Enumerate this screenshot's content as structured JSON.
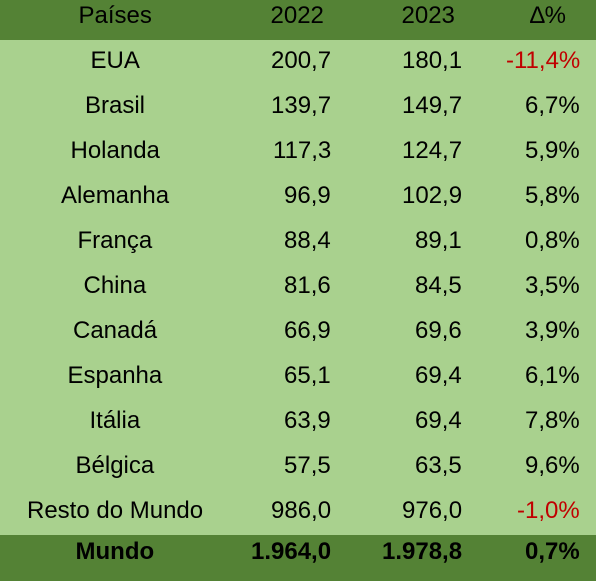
{
  "table": {
    "header": [
      "Países",
      "2022",
      "2023",
      "∆%"
    ],
    "rows": [
      [
        "EUA",
        "200,7",
        "180,1",
        "-11,4%"
      ],
      [
        "Brasil",
        "139,7",
        "149,7",
        "6,7%"
      ],
      [
        "Holanda",
        "117,3",
        "124,7",
        "5,9%"
      ],
      [
        "Alemanha",
        "96,9",
        "102,9",
        "5,8%"
      ],
      [
        "França",
        "88,4",
        "89,1",
        "0,8%"
      ],
      [
        "China",
        "81,6",
        "84,5",
        "3,5%"
      ],
      [
        "Canadá",
        "66,9",
        "69,6",
        "3,9%"
      ],
      [
        "Espanha",
        "65,1",
        "69,4",
        "6,1%"
      ],
      [
        "Itália",
        "63,9",
        "69,4",
        "7,8%"
      ],
      [
        "Bélgica",
        "57,5",
        "63,5",
        "9,6%"
      ],
      [
        "Resto do Mundo",
        "986,0",
        "976,0",
        "-1,0%"
      ]
    ],
    "footer": [
      "Mundo",
      "1.964,0",
      "1.978,8",
      "0,7%"
    ]
  }
}
